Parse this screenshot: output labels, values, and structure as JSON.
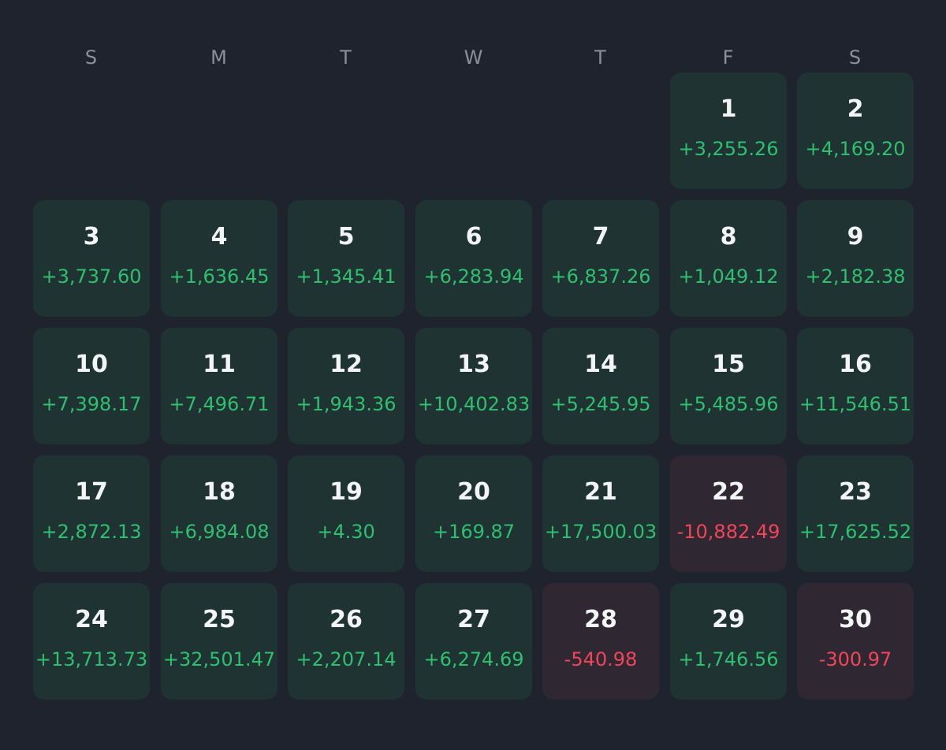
{
  "weekdays": [
    "S",
    "M",
    "T",
    "W",
    "T",
    "F",
    "S"
  ],
  "start_weekday_index": 5,
  "colors": {
    "background": "#1e232d",
    "profit_cell": "#1f3332",
    "loss_cell": "#2f2731",
    "profit_text": "#2fbf71",
    "loss_text": "#f0465a",
    "weekday_text": "#8b919b"
  },
  "days": [
    {
      "day": "1",
      "pnl": "+3,255.26",
      "loss": false
    },
    {
      "day": "2",
      "pnl": "+4,169.20",
      "loss": false
    },
    {
      "day": "3",
      "pnl": "+3,737.60",
      "loss": false
    },
    {
      "day": "4",
      "pnl": "+1,636.45",
      "loss": false
    },
    {
      "day": "5",
      "pnl": "+1,345.41",
      "loss": false
    },
    {
      "day": "6",
      "pnl": "+6,283.94",
      "loss": false
    },
    {
      "day": "7",
      "pnl": "+6,837.26",
      "loss": false
    },
    {
      "day": "8",
      "pnl": "+1,049.12",
      "loss": false
    },
    {
      "day": "9",
      "pnl": "+2,182.38",
      "loss": false
    },
    {
      "day": "10",
      "pnl": "+7,398.17",
      "loss": false
    },
    {
      "day": "11",
      "pnl": "+7,496.71",
      "loss": false
    },
    {
      "day": "12",
      "pnl": "+1,943.36",
      "loss": false
    },
    {
      "day": "13",
      "pnl": "+10,402.83",
      "loss": false
    },
    {
      "day": "14",
      "pnl": "+5,245.95",
      "loss": false
    },
    {
      "day": "15",
      "pnl": "+5,485.96",
      "loss": false
    },
    {
      "day": "16",
      "pnl": "+11,546.51",
      "loss": false
    },
    {
      "day": "17",
      "pnl": "+2,872.13",
      "loss": false
    },
    {
      "day": "18",
      "pnl": "+6,984.08",
      "loss": false
    },
    {
      "day": "19",
      "pnl": "+4.30",
      "loss": false
    },
    {
      "day": "20",
      "pnl": "+169.87",
      "loss": false
    },
    {
      "day": "21",
      "pnl": "+17,500.03",
      "loss": false
    },
    {
      "day": "22",
      "pnl": "-10,882.49",
      "loss": true
    },
    {
      "day": "23",
      "pnl": "+17,625.52",
      "loss": false
    },
    {
      "day": "24",
      "pnl": "+13,713.73",
      "loss": false
    },
    {
      "day": "25",
      "pnl": "+32,501.47",
      "loss": false
    },
    {
      "day": "26",
      "pnl": "+2,207.14",
      "loss": false
    },
    {
      "day": "27",
      "pnl": "+6,274.69",
      "loss": false
    },
    {
      "day": "28",
      "pnl": "-540.98",
      "loss": true
    },
    {
      "day": "29",
      "pnl": "+1,746.56",
      "loss": false
    },
    {
      "day": "30",
      "pnl": "-300.97",
      "loss": true
    }
  ]
}
